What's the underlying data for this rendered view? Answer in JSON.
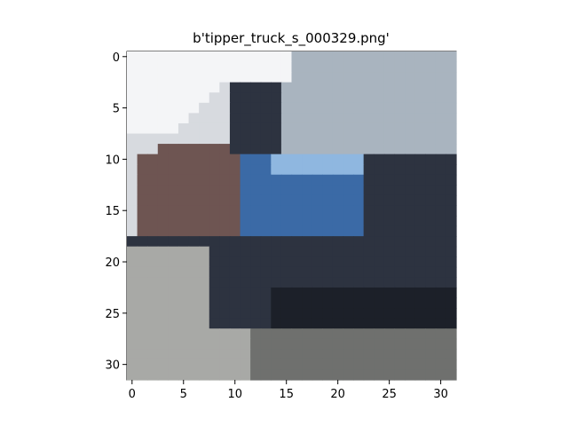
{
  "figure": {
    "title": "b'tipper_truck_s_000329.png'"
  },
  "axes": {
    "x_ticks": [
      "0",
      "5",
      "10",
      "15",
      "20",
      "25",
      "30"
    ],
    "y_ticks": [
      "0",
      "5",
      "10",
      "15",
      "20",
      "25",
      "30"
    ],
    "x_range": [
      -0.5,
      31.5
    ],
    "y_range": [
      -0.5,
      31.5
    ],
    "y_inverted": true
  },
  "image": {
    "grid_size": 32,
    "zones": [
      {
        "name": "sky",
        "color": "#f4f5f7"
      },
      {
        "name": "sky-haze",
        "color": "#d7dadf"
      },
      {
        "name": "truck-body-light",
        "color": "#a9b4bf"
      },
      {
        "name": "truck-cab-blue",
        "color": "#3b6aa6"
      },
      {
        "name": "cab-window",
        "color": "#8fb7e0"
      },
      {
        "name": "truck-dark",
        "color": "#2d3340"
      },
      {
        "name": "rust-bed",
        "color": "#6e5552"
      },
      {
        "name": "shadow",
        "color": "#1c2029"
      },
      {
        "name": "ground",
        "color": "#a8a9a6"
      },
      {
        "name": "ground-dark",
        "color": "#6f706e"
      }
    ]
  }
}
